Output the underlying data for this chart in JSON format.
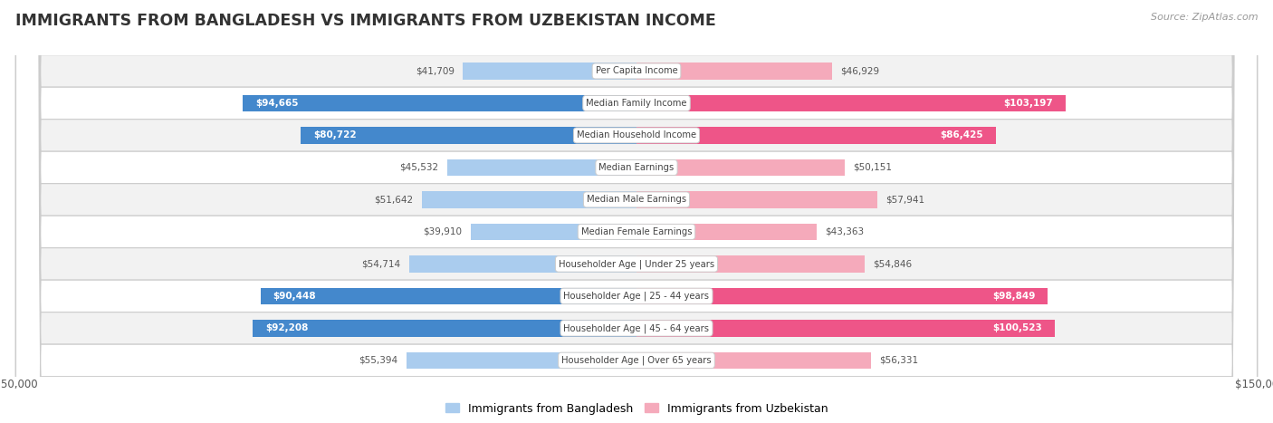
{
  "title": "IMMIGRANTS FROM BANGLADESH VS IMMIGRANTS FROM UZBEKISTAN INCOME",
  "source": "Source: ZipAtlas.com",
  "categories": [
    "Per Capita Income",
    "Median Family Income",
    "Median Household Income",
    "Median Earnings",
    "Median Male Earnings",
    "Median Female Earnings",
    "Householder Age | Under 25 years",
    "Householder Age | 25 - 44 years",
    "Householder Age | 45 - 64 years",
    "Householder Age | Over 65 years"
  ],
  "bangladesh_values": [
    41709,
    94665,
    80722,
    45532,
    51642,
    39910,
    54714,
    90448,
    92208,
    55394
  ],
  "uzbekistan_values": [
    46929,
    103197,
    86425,
    50151,
    57941,
    43363,
    54846,
    98849,
    100523,
    56331
  ],
  "bangladesh_labels": [
    "$41,709",
    "$94,665",
    "$80,722",
    "$45,532",
    "$51,642",
    "$39,910",
    "$54,714",
    "$90,448",
    "$92,208",
    "$55,394"
  ],
  "uzbekistan_labels": [
    "$46,929",
    "$103,197",
    "$86,425",
    "$50,151",
    "$57,941",
    "$43,363",
    "$54,846",
    "$98,849",
    "$100,523",
    "$56,331"
  ],
  "bangladesh_color_light": "#aaccee",
  "bangladesh_color_dark": "#4488cc",
  "uzbekistan_color_light": "#f5aabb",
  "uzbekistan_color_dark": "#ee5588",
  "max_value": 150000,
  "bar_height": 0.52,
  "row_bg_odd": "#f2f2f2",
  "row_bg_even": "#ffffff",
  "legend_label_bangladesh": "Immigrants from Bangladesh",
  "legend_label_uzbekistan": "Immigrants from Uzbekistan",
  "inside_label_threshold": 65000,
  "label_dark_threshold": 65000
}
